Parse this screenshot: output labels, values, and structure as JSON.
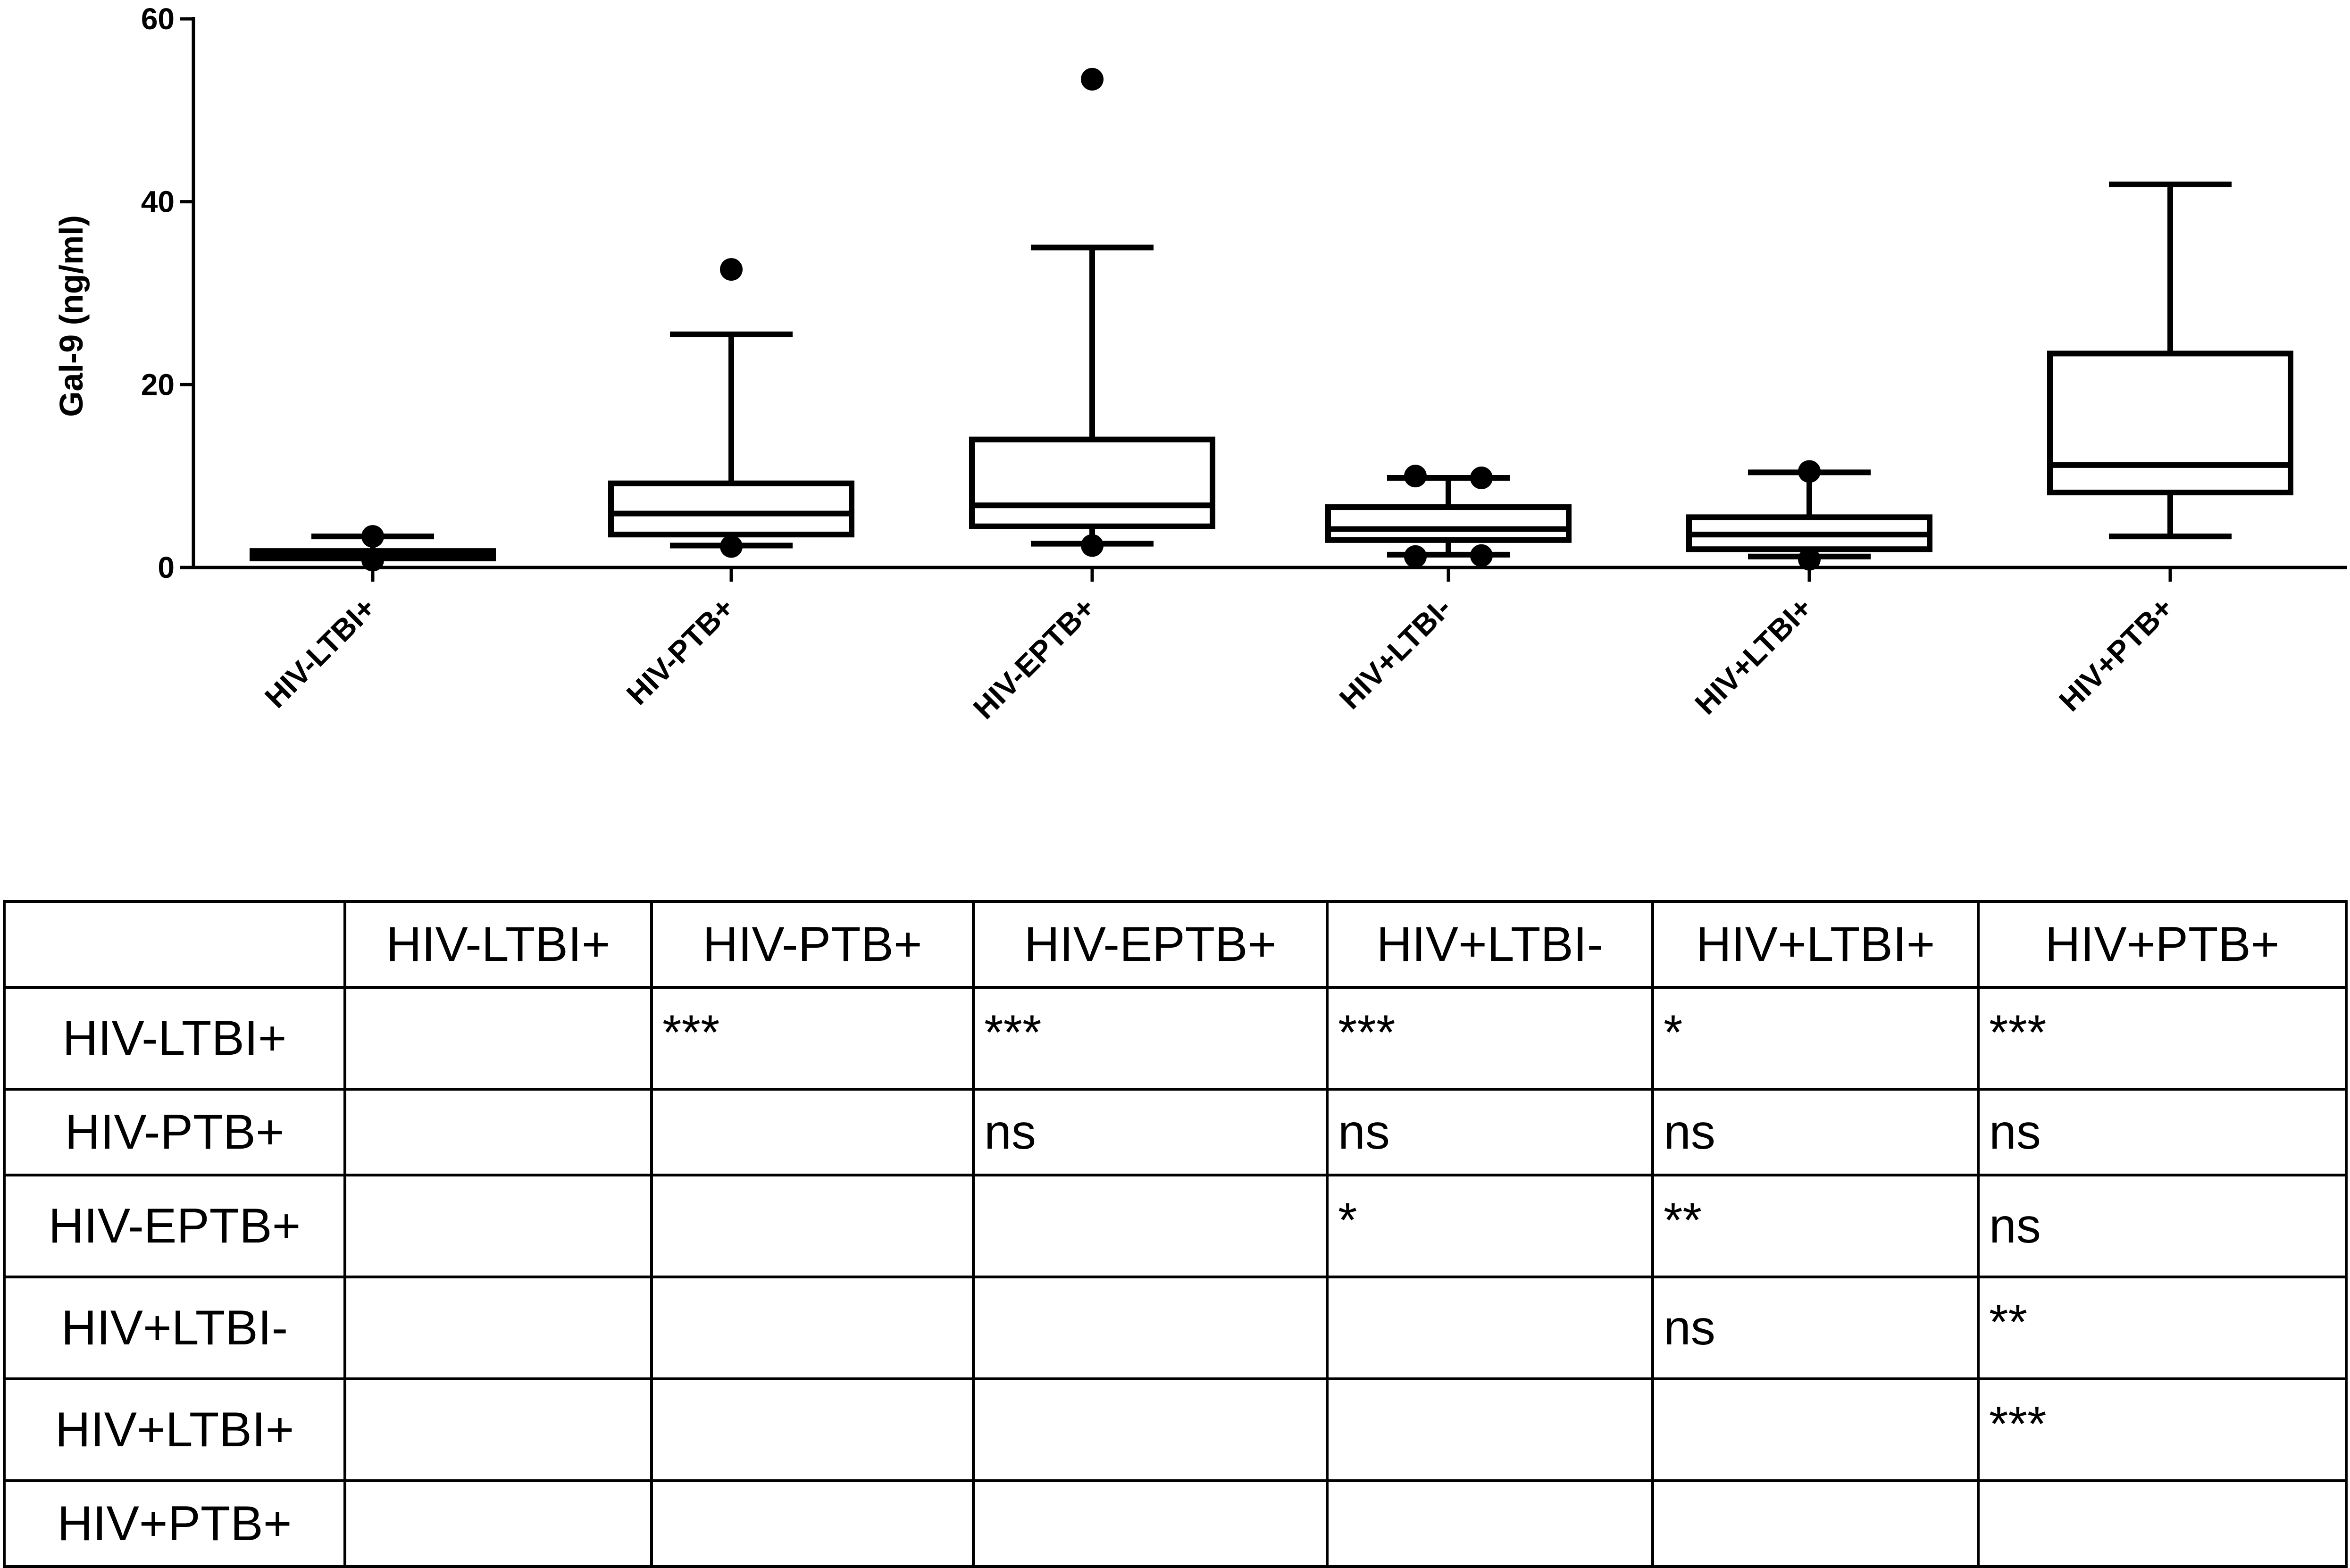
{
  "chart_data": {
    "type": "box",
    "ylabel": "Gal-9 (ng/ml)",
    "ylim": [
      0,
      60
    ],
    "yticks": [
      "0",
      "20",
      "40",
      "60"
    ],
    "categories": [
      "HIV-LTBI+",
      "HIV-PTB+",
      "HIV-EPTB+",
      "HIV+LTBI-",
      "HIV+LTBI+",
      "HIV+PTB+"
    ],
    "boxes": [
      {
        "category": "HIV-LTBI+",
        "whisker_low": 1.0,
        "q1": 1.0,
        "median": 1.4,
        "q3": 1.8,
        "whisker_high": 3.4,
        "outliers": [
          3.4,
          0.8
        ]
      },
      {
        "category": "HIV-PTB+",
        "whisker_low": 2.4,
        "q1": 3.6,
        "median": 5.9,
        "q3": 9.2,
        "whisker_high": 25.5,
        "outliers": [
          32.6,
          2.3
        ]
      },
      {
        "category": "HIV-EPTB+",
        "whisker_low": 2.6,
        "q1": 4.5,
        "median": 6.8,
        "q3": 14.0,
        "whisker_high": 35.0,
        "outliers": [
          53.4,
          2.4
        ]
      },
      {
        "category": "HIV+LTBI-",
        "whisker_low": 1.4,
        "q1": 3.0,
        "median": 4.2,
        "q3": 6.6,
        "whisker_high": 9.8,
        "outliers": [
          10.0,
          9.8,
          1.2,
          1.3
        ]
      },
      {
        "category": "HIV+LTBI+",
        "whisker_low": 1.2,
        "q1": 2.0,
        "median": 3.6,
        "q3": 5.5,
        "whisker_high": 10.4,
        "outliers": [
          10.5,
          0.9
        ]
      },
      {
        "category": "HIV+PTB+",
        "whisker_low": 3.4,
        "q1": 8.2,
        "median": 11.2,
        "q3": 23.4,
        "whisker_high": 41.9,
        "outliers": []
      }
    ]
  },
  "table": {
    "columns": [
      "",
      "HIV-LTBI+",
      "HIV-PTB+",
      "HIV-EPTB+",
      "HIV+LTBI-",
      "HIV+LTBI+",
      "HIV+PTB+"
    ],
    "rows": [
      {
        "label": "HIV-LTBI+",
        "cells": [
          "",
          "***",
          "***",
          "***",
          "*",
          "***"
        ]
      },
      {
        "label": "HIV-PTB+",
        "cells": [
          "",
          "",
          "ns",
          "ns",
          "ns",
          "ns"
        ]
      },
      {
        "label": "HIV-EPTB+",
        "cells": [
          "",
          "",
          "",
          "*",
          "**",
          "ns"
        ]
      },
      {
        "label": "HIV+LTBI-",
        "cells": [
          "",
          "",
          "",
          "",
          "ns",
          "**"
        ]
      },
      {
        "label": "HIV+LTBI+",
        "cells": [
          "",
          "",
          "",
          "",
          "",
          "***"
        ]
      },
      {
        "label": "HIV+PTB+",
        "cells": [
          "",
          "",
          "",
          "",
          "",
          ""
        ]
      }
    ]
  }
}
